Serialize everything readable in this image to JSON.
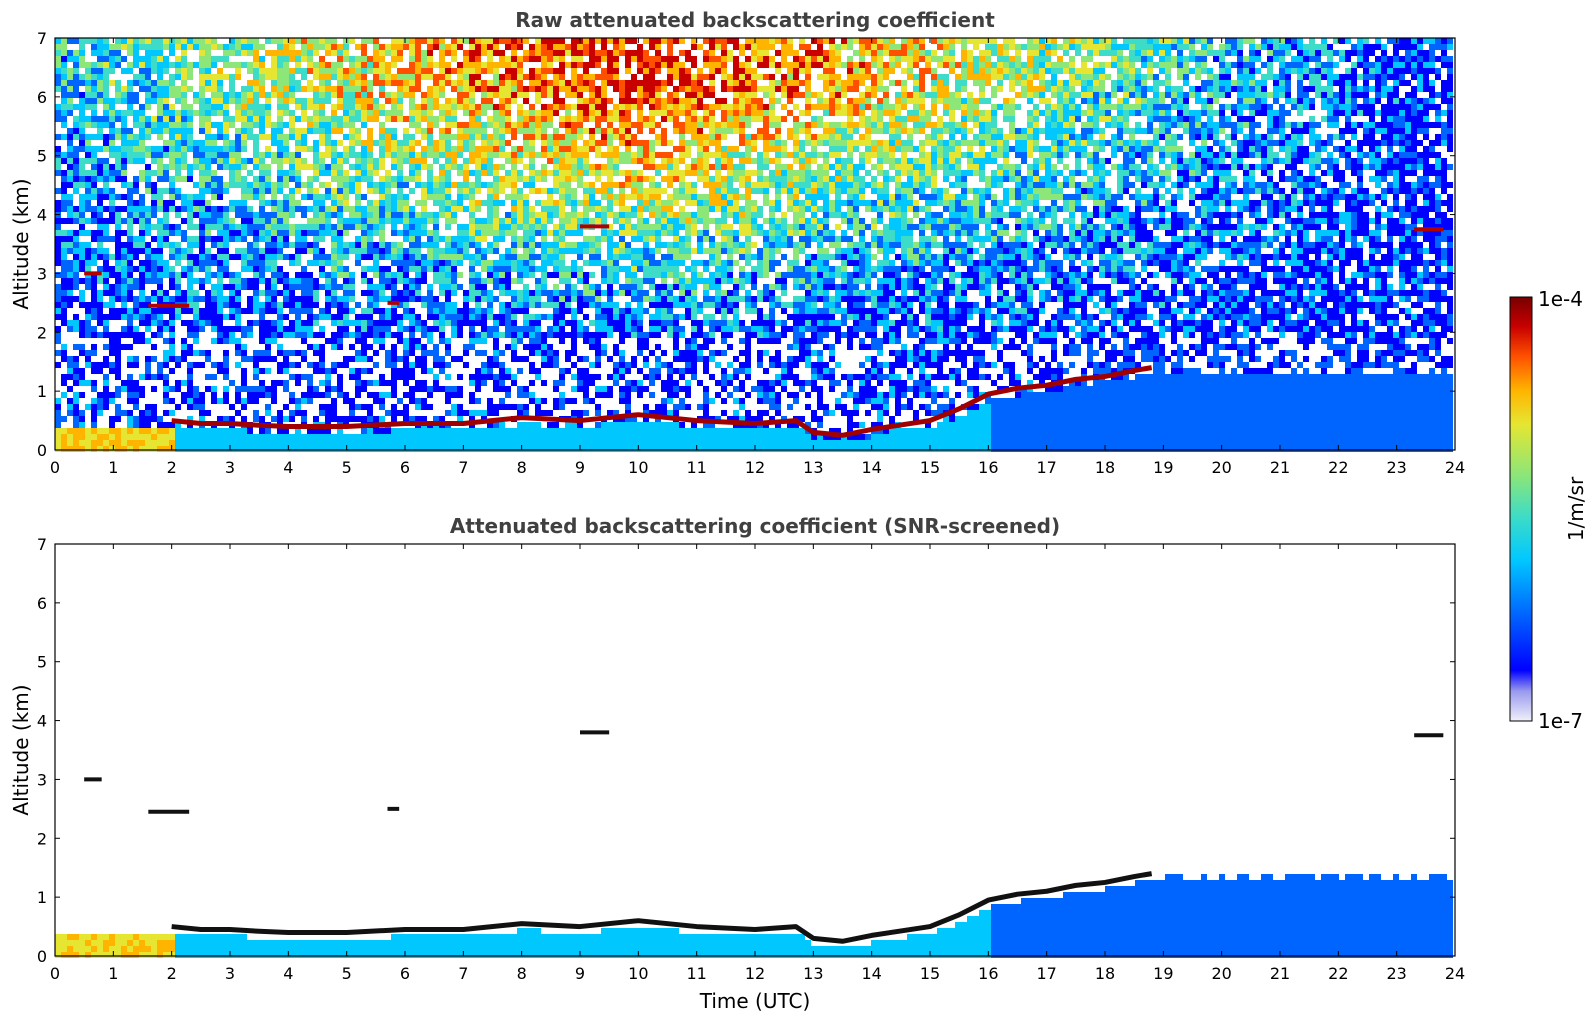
{
  "chart_data": [
    {
      "type": "heatmap",
      "title": "Raw attenuated backscattering coefficient",
      "xlabel": "",
      "ylabel": "Altitude (km)",
      "xlim": [
        0,
        24
      ],
      "ylim": [
        0,
        7
      ],
      "x_ticks": [
        "0",
        "1",
        "2",
        "3",
        "4",
        "5",
        "6",
        "7",
        "8",
        "9",
        "10",
        "11",
        "12",
        "13",
        "14",
        "15",
        "16",
        "17",
        "18",
        "19",
        "20",
        "21",
        "22",
        "23",
        "24"
      ],
      "y_ticks": [
        "0",
        "1",
        "2",
        "3",
        "4",
        "5",
        "6",
        "7"
      ],
      "grid": false,
      "features": {
        "cloud_base_km": [
          [
            2.0,
            0.5
          ],
          [
            2.5,
            0.45
          ],
          [
            3.0,
            0.45
          ],
          [
            3.5,
            0.42
          ],
          [
            4.0,
            0.4
          ],
          [
            5.0,
            0.4
          ],
          [
            6.0,
            0.45
          ],
          [
            7.0,
            0.45
          ],
          [
            8.0,
            0.55
          ],
          [
            9.0,
            0.5
          ],
          [
            10.0,
            0.6
          ],
          [
            11.0,
            0.5
          ],
          [
            12.0,
            0.45
          ],
          [
            12.7,
            0.5
          ],
          [
            13.0,
            0.3
          ],
          [
            13.5,
            0.25
          ],
          [
            14.0,
            0.35
          ],
          [
            15.0,
            0.5
          ],
          [
            15.5,
            0.7
          ],
          [
            16.0,
            0.95
          ],
          [
            16.5,
            1.05
          ],
          [
            17.0,
            1.1
          ],
          [
            17.5,
            1.2
          ],
          [
            18.0,
            1.25
          ],
          [
            18.5,
            1.35
          ],
          [
            18.8,
            1.4
          ]
        ],
        "high_layers": [
          {
            "x": [
              0.5,
              0.8
            ],
            "y": 3.0
          },
          {
            "x": [
              1.6,
              2.3
            ],
            "y": 2.45
          },
          {
            "x": [
              5.7,
              5.9
            ],
            "y": 2.5
          },
          {
            "x": [
              9.0,
              9.5
            ],
            "y": 3.8
          },
          {
            "x": [
              23.3,
              23.8
            ],
            "y": 3.75
          }
        ]
      }
    },
    {
      "type": "heatmap",
      "title": "Attenuated backscattering coefficient (SNR-screened)",
      "xlabel": "Time (UTC)",
      "ylabel": "Altitude (km)",
      "xlim": [
        0,
        24
      ],
      "ylim": [
        0,
        7
      ],
      "x_ticks": [
        "0",
        "1",
        "2",
        "3",
        "4",
        "5",
        "6",
        "7",
        "8",
        "9",
        "10",
        "11",
        "12",
        "13",
        "14",
        "15",
        "16",
        "17",
        "18",
        "19",
        "20",
        "21",
        "22",
        "23",
        "24"
      ],
      "y_ticks": [
        "0",
        "1",
        "2",
        "3",
        "4",
        "5",
        "6",
        "7"
      ],
      "grid": false
    }
  ],
  "colorbar": {
    "label": "1/m/sr",
    "max_label": "1e-4",
    "min_label": "1e-7",
    "scale": "log",
    "range": [
      1e-07,
      0.0001
    ],
    "colormap": [
      "#e6e6f5",
      "#c8c8f0",
      "#0000ff",
      "#0064ff",
      "#00c8ff",
      "#3cdcc8",
      "#8ce678",
      "#e6e632",
      "#ffb400",
      "#ff5000",
      "#c80000",
      "#780000"
    ]
  }
}
